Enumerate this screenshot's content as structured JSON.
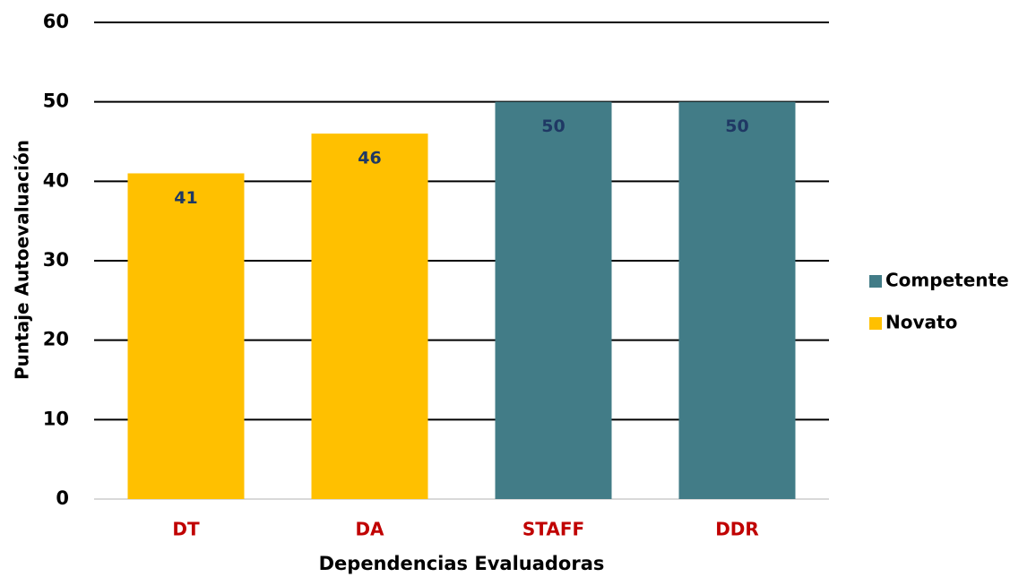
{
  "chart_data": {
    "type": "bar",
    "categories": [
      "DT",
      "DA",
      "STAFF",
      "DDR"
    ],
    "series": [
      {
        "name": "Competente",
        "color": "#427c87",
        "values": [
          null,
          null,
          50,
          50
        ]
      },
      {
        "name": "Novato",
        "color": "#ffc000",
        "values": [
          41,
          46,
          null,
          null
        ]
      }
    ],
    "x_label": "Dependencias Evaluadoras",
    "y_label": "Puntaje Autoevaluación",
    "ylim": [
      0,
      60
    ],
    "yticks": [
      0,
      10,
      20,
      30,
      40,
      50,
      60
    ],
    "grid": true,
    "legend": "right"
  }
}
